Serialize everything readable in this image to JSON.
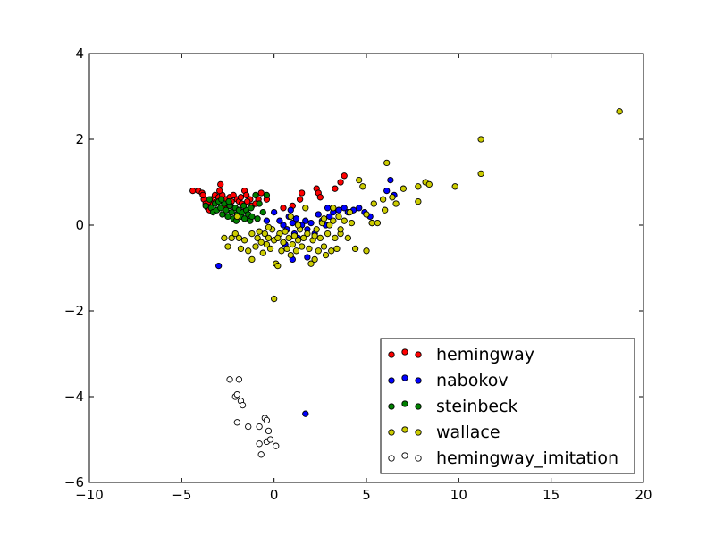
{
  "chart_data": {
    "type": "scatter",
    "title": "",
    "xlabel": "",
    "ylabel": "",
    "xlim": [
      -10,
      20
    ],
    "ylim": [
      -6,
      4
    ],
    "xticks": [
      -10,
      -5,
      0,
      5,
      10,
      15,
      20
    ],
    "yticks": [
      -6,
      -4,
      -2,
      0,
      2,
      4
    ],
    "xtick_labels": [
      "−10",
      "−5",
      "0",
      "5",
      "10",
      "15",
      "20"
    ],
    "ytick_labels": [
      "−6",
      "−4",
      "−2",
      "0",
      "2",
      "4"
    ],
    "grid": false,
    "legend_position": "lower-right",
    "series": [
      {
        "name": "hemingway",
        "color": "#ff0000",
        "points": [
          [
            -4.4,
            0.8
          ],
          [
            -4.1,
            0.8
          ],
          [
            -3.9,
            0.75
          ],
          [
            -3.8,
            0.6
          ],
          [
            -3.7,
            0.5
          ],
          [
            -3.6,
            0.4
          ],
          [
            -3.5,
            0.35
          ],
          [
            -3.4,
            0.6
          ],
          [
            -3.3,
            0.5
          ],
          [
            -3.2,
            0.7
          ],
          [
            -3.1,
            0.55
          ],
          [
            -3.0,
            0.65
          ],
          [
            -2.9,
            0.95
          ],
          [
            -2.8,
            0.7
          ],
          [
            -2.7,
            0.45
          ],
          [
            -2.6,
            0.6
          ],
          [
            -2.5,
            0.5
          ],
          [
            -2.4,
            0.65
          ],
          [
            -2.3,
            0.55
          ],
          [
            -2.2,
            0.7
          ],
          [
            -2.1,
            0.4
          ],
          [
            -2.0,
            0.6
          ],
          [
            -1.9,
            0.55
          ],
          [
            -1.8,
            0.65
          ],
          [
            -1.6,
            0.8
          ],
          [
            -1.5,
            0.7
          ],
          [
            -1.3,
            0.6
          ],
          [
            -1.2,
            0.45
          ],
          [
            -1.0,
            0.5
          ],
          [
            -0.7,
            0.75
          ],
          [
            -0.4,
            0.6
          ],
          [
            0.5,
            0.4
          ],
          [
            1.0,
            0.45
          ],
          [
            1.4,
            0.6
          ],
          [
            1.5,
            0.75
          ],
          [
            2.3,
            0.85
          ],
          [
            2.4,
            0.75
          ],
          [
            2.5,
            0.65
          ],
          [
            3.3,
            0.85
          ],
          [
            3.6,
            1.0
          ],
          [
            3.8,
            1.15
          ],
          [
            -3.85,
            0.7
          ],
          [
            -3.55,
            0.55
          ],
          [
            -2.95,
            0.8
          ],
          [
            -2.35,
            0.45
          ],
          [
            -1.75,
            0.5
          ],
          [
            -1.45,
            0.55
          ],
          [
            -0.85,
            0.6
          ]
        ]
      },
      {
        "name": "nabokov",
        "color": "#0000ff",
        "points": [
          [
            -3.0,
            -0.95
          ],
          [
            0.0,
            0.3
          ],
          [
            0.3,
            0.1
          ],
          [
            0.5,
            0.0
          ],
          [
            0.7,
            -0.1
          ],
          [
            0.8,
            0.2
          ],
          [
            1.0,
            0.05
          ],
          [
            1.1,
            -0.2
          ],
          [
            1.2,
            0.15
          ],
          [
            1.3,
            -0.3
          ],
          [
            1.5,
            0.0
          ],
          [
            1.7,
            0.1
          ],
          [
            1.8,
            -0.1
          ],
          [
            2.0,
            0.05
          ],
          [
            2.2,
            -0.2
          ],
          [
            2.4,
            0.25
          ],
          [
            2.6,
            0.1
          ],
          [
            2.8,
            0.0
          ],
          [
            3.0,
            0.2
          ],
          [
            3.2,
            0.3
          ],
          [
            3.5,
            0.35
          ],
          [
            3.8,
            0.4
          ],
          [
            4.0,
            0.3
          ],
          [
            4.3,
            0.35
          ],
          [
            4.6,
            0.4
          ],
          [
            5.2,
            0.2
          ],
          [
            5.3,
            0.05
          ],
          [
            6.1,
            0.8
          ],
          [
            6.3,
            1.05
          ],
          [
            6.5,
            0.7
          ],
          [
            1.0,
            -0.8
          ],
          [
            1.8,
            -0.75
          ],
          [
            0.6,
            -0.45
          ],
          [
            1.7,
            -4.4
          ],
          [
            -0.4,
            0.1
          ],
          [
            0.9,
            0.35
          ],
          [
            2.9,
            0.4
          ],
          [
            4.9,
            0.3
          ]
        ]
      },
      {
        "name": "steinbeck",
        "color": "#008000",
        "points": [
          [
            -3.7,
            0.45
          ],
          [
            -3.5,
            0.6
          ],
          [
            -3.4,
            0.4
          ],
          [
            -3.3,
            0.3
          ],
          [
            -3.2,
            0.5
          ],
          [
            -3.1,
            0.35
          ],
          [
            -3.0,
            0.55
          ],
          [
            -2.9,
            0.4
          ],
          [
            -2.8,
            0.25
          ],
          [
            -2.7,
            0.5
          ],
          [
            -2.6,
            0.35
          ],
          [
            -2.5,
            0.2
          ],
          [
            -2.4,
            0.45
          ],
          [
            -2.3,
            0.3
          ],
          [
            -2.2,
            0.15
          ],
          [
            -2.1,
            0.4
          ],
          [
            -2.0,
            0.25
          ],
          [
            -1.9,
            0.35
          ],
          [
            -1.8,
            0.2
          ],
          [
            -1.7,
            0.3
          ],
          [
            -1.6,
            0.15
          ],
          [
            -1.5,
            0.35
          ],
          [
            -1.4,
            0.25
          ],
          [
            -1.3,
            0.1
          ],
          [
            -1.2,
            0.2
          ],
          [
            -1.0,
            0.7
          ],
          [
            -0.8,
            0.5
          ],
          [
            -0.6,
            0.3
          ],
          [
            -0.4,
            0.7
          ],
          [
            -2.85,
            0.6
          ],
          [
            -2.45,
            0.55
          ],
          [
            -2.05,
            0.1
          ],
          [
            -1.65,
            0.45
          ],
          [
            -1.25,
            0.4
          ],
          [
            -0.9,
            0.15
          ]
        ]
      },
      {
        "name": "wallace",
        "color": "#cccc00",
        "points": [
          [
            -2.7,
            -0.3
          ],
          [
            -2.5,
            -0.5
          ],
          [
            -2.3,
            -0.3
          ],
          [
            -2.1,
            -0.2
          ],
          [
            -1.9,
            -0.3
          ],
          [
            -1.8,
            -0.55
          ],
          [
            -1.6,
            -0.35
          ],
          [
            -1.4,
            -0.6
          ],
          [
            -1.2,
            -0.8
          ],
          [
            -1.0,
            -0.5
          ],
          [
            -0.9,
            -0.3
          ],
          [
            -0.8,
            -0.15
          ],
          [
            -0.7,
            -0.4
          ],
          [
            -0.6,
            -0.65
          ],
          [
            -0.5,
            -0.2
          ],
          [
            -0.4,
            -0.45
          ],
          [
            -0.3,
            -0.3
          ],
          [
            -0.2,
            -0.55
          ],
          [
            -0.1,
            -0.1
          ],
          [
            0.0,
            -0.35
          ],
          [
            0.1,
            -0.9
          ],
          [
            0.2,
            -0.95
          ],
          [
            0.3,
            -0.2
          ],
          [
            0.4,
            -0.6
          ],
          [
            0.5,
            -0.4
          ],
          [
            0.6,
            -0.15
          ],
          [
            0.7,
            -0.55
          ],
          [
            0.8,
            -0.3
          ],
          [
            0.9,
            -0.7
          ],
          [
            1.0,
            -0.45
          ],
          [
            1.1,
            -0.25
          ],
          [
            1.2,
            -0.6
          ],
          [
            1.3,
            -0.35
          ],
          [
            1.4,
            -0.1
          ],
          [
            1.5,
            -0.5
          ],
          [
            1.6,
            -0.3
          ],
          [
            1.7,
            0.4
          ],
          [
            1.8,
            -0.2
          ],
          [
            1.9,
            -0.55
          ],
          [
            2.0,
            -0.9
          ],
          [
            2.1,
            -0.35
          ],
          [
            2.2,
            -0.8
          ],
          [
            2.3,
            -0.1
          ],
          [
            2.4,
            -0.6
          ],
          [
            2.5,
            -0.3
          ],
          [
            2.6,
            0.05
          ],
          [
            2.7,
            -0.5
          ],
          [
            2.8,
            -0.7
          ],
          [
            2.9,
            -0.2
          ],
          [
            3.0,
            0.0
          ],
          [
            3.1,
            -0.6
          ],
          [
            3.2,
            0.1
          ],
          [
            3.3,
            -0.3
          ],
          [
            3.4,
            -0.55
          ],
          [
            3.5,
            0.2
          ],
          [
            3.6,
            -0.2
          ],
          [
            3.8,
            0.1
          ],
          [
            4.0,
            -0.3
          ],
          [
            4.2,
            0.05
          ],
          [
            4.4,
            -0.55
          ],
          [
            4.6,
            1.05
          ],
          [
            4.8,
            0.9
          ],
          [
            5.0,
            -0.6
          ],
          [
            5.3,
            0.05
          ],
          [
            5.6,
            0.05
          ],
          [
            5.9,
            0.6
          ],
          [
            6.0,
            0.35
          ],
          [
            6.1,
            1.45
          ],
          [
            6.4,
            0.65
          ],
          [
            6.6,
            0.5
          ],
          [
            7.0,
            0.85
          ],
          [
            7.8,
            0.9
          ],
          [
            7.8,
            0.55
          ],
          [
            8.2,
            1.0
          ],
          [
            8.4,
            0.95
          ],
          [
            9.8,
            0.9
          ],
          [
            11.2,
            1.2
          ],
          [
            11.2,
            2.0
          ],
          [
            18.7,
            2.65
          ],
          [
            0.0,
            -1.72
          ],
          [
            -2.0,
            0.2
          ],
          [
            0.9,
            0.2
          ],
          [
            2.7,
            0.15
          ],
          [
            3.2,
            0.4
          ],
          [
            -0.3,
            -0.05
          ],
          [
            1.3,
            0.0
          ],
          [
            4.1,
            0.3
          ],
          [
            5.0,
            0.25
          ],
          [
            5.4,
            0.5
          ],
          [
            0.2,
            -0.3
          ],
          [
            2.2,
            -0.25
          ],
          [
            -1.2,
            -0.2
          ],
          [
            3.6,
            -0.1
          ]
        ]
      },
      {
        "name": "hemingway_imitation",
        "color": "#ffffff",
        "points": [
          [
            -2.4,
            -3.6
          ],
          [
            -1.9,
            -3.6
          ],
          [
            -2.1,
            -4.0
          ],
          [
            -1.8,
            -4.1
          ],
          [
            -2.0,
            -3.95
          ],
          [
            -1.7,
            -4.2
          ],
          [
            -2.0,
            -4.6
          ],
          [
            -1.4,
            -4.7
          ],
          [
            -0.8,
            -4.7
          ],
          [
            -0.5,
            -4.5
          ],
          [
            -0.4,
            -4.55
          ],
          [
            -0.3,
            -4.8
          ],
          [
            -0.4,
            -5.05
          ],
          [
            -0.2,
            -5.0
          ],
          [
            -0.8,
            -5.1
          ],
          [
            0.1,
            -5.15
          ],
          [
            -0.7,
            -5.35
          ]
        ]
      }
    ]
  }
}
